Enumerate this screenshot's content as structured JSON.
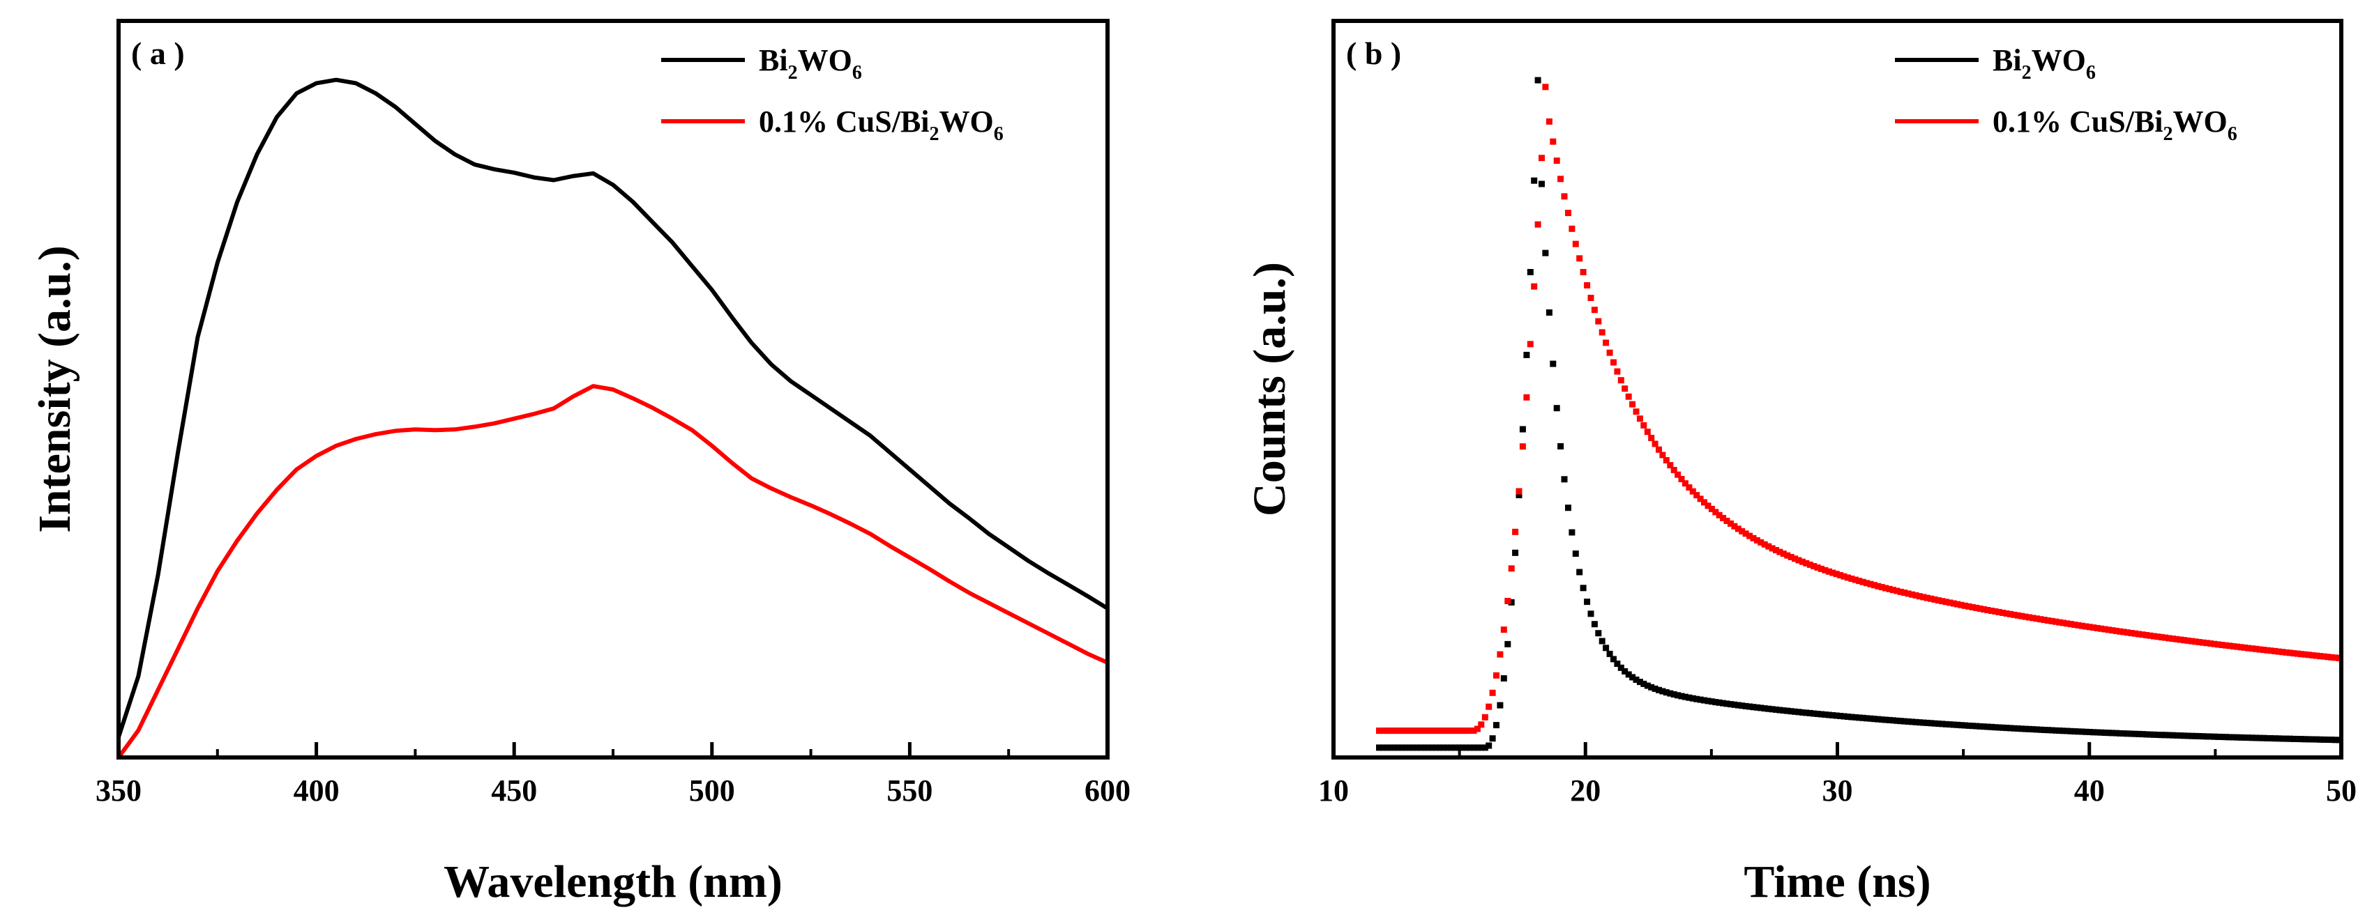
{
  "chart_data": [
    {
      "panel": "a",
      "panel_label": "( a )",
      "type": "line",
      "xlabel": "Wavelength (nm)",
      "ylabel": "Intensity (a.u.)",
      "xlim": [
        350,
        600
      ],
      "ylim": [
        0,
        1
      ],
      "x_ticks": [
        350,
        400,
        450,
        500,
        550,
        600
      ],
      "x_tick_labels": [
        "350",
        "400",
        "450",
        "500",
        "550",
        "600"
      ],
      "y_ticks": [],
      "legend_position": "top-right",
      "series": [
        {
          "name": "Bi2WO6",
          "label_parts": [
            [
              "Bi",
              ""
            ],
            [
              "2",
              "sub"
            ],
            [
              "WO",
              ""
            ],
            [
              "6",
              "sub"
            ]
          ],
          "color": "#000000",
          "x": [
            350,
            355,
            360,
            365,
            370,
            375,
            380,
            385,
            390,
            395,
            400,
            405,
            410,
            415,
            420,
            425,
            430,
            435,
            440,
            445,
            450,
            455,
            460,
            465,
            470,
            475,
            480,
            485,
            490,
            495,
            500,
            505,
            510,
            515,
            520,
            525,
            530,
            535,
            540,
            545,
            550,
            555,
            560,
            565,
            570,
            575,
            580,
            585,
            590,
            595,
            600
          ],
          "y": [
            0.03,
            0.12,
            0.27,
            0.45,
            0.62,
            0.73,
            0.82,
            0.89,
            0.945,
            0.98,
            0.995,
            1.0,
            0.995,
            0.98,
            0.96,
            0.935,
            0.91,
            0.89,
            0.875,
            0.868,
            0.863,
            0.856,
            0.852,
            0.858,
            0.862,
            0.845,
            0.82,
            0.79,
            0.76,
            0.725,
            0.69,
            0.65,
            0.612,
            0.58,
            0.555,
            0.535,
            0.515,
            0.495,
            0.475,
            0.45,
            0.425,
            0.4,
            0.375,
            0.353,
            0.33,
            0.31,
            0.29,
            0.272,
            0.255,
            0.238,
            0.22
          ]
        },
        {
          "name": "0.1% CuS/Bi2WO6",
          "label_parts": [
            [
              "0.1% CuS/Bi",
              ""
            ],
            [
              "2",
              "sub"
            ],
            [
              "WO",
              ""
            ],
            [
              "6",
              "sub"
            ]
          ],
          "color": "#ff0000",
          "x": [
            350,
            355,
            360,
            365,
            370,
            375,
            380,
            385,
            390,
            395,
            400,
            405,
            410,
            415,
            420,
            425,
            430,
            435,
            440,
            445,
            450,
            455,
            460,
            465,
            470,
            475,
            480,
            485,
            490,
            495,
            500,
            505,
            510,
            515,
            520,
            525,
            530,
            535,
            540,
            545,
            550,
            555,
            560,
            565,
            570,
            575,
            580,
            585,
            590,
            595,
            600
          ],
          "y": [
            0.0,
            0.04,
            0.1,
            0.16,
            0.22,
            0.275,
            0.32,
            0.36,
            0.395,
            0.425,
            0.445,
            0.46,
            0.47,
            0.477,
            0.482,
            0.484,
            0.483,
            0.484,
            0.488,
            0.493,
            0.5,
            0.507,
            0.515,
            0.533,
            0.548,
            0.543,
            0.53,
            0.516,
            0.5,
            0.483,
            0.46,
            0.435,
            0.412,
            0.397,
            0.384,
            0.372,
            0.359,
            0.345,
            0.33,
            0.312,
            0.295,
            0.278,
            0.26,
            0.243,
            0.228,
            0.213,
            0.198,
            0.183,
            0.168,
            0.153,
            0.14
          ]
        }
      ]
    },
    {
      "panel": "b",
      "panel_label": "( b )",
      "type": "scatter",
      "xlabel": "Time (ns)",
      "ylabel": "Counts (a.u.)",
      "xlim": [
        10,
        50
      ],
      "ylim": [
        0,
        1
      ],
      "x_ticks": [
        10,
        20,
        30,
        40,
        50
      ],
      "x_tick_labels": [
        "10",
        "20",
        "30",
        "40",
        "50"
      ],
      "y_ticks": [],
      "legend_position": "top-right",
      "sampling_ns": 0.15,
      "series": [
        {
          "name": "Bi2WO6",
          "label_parts": [
            [
              "Bi",
              ""
            ],
            [
              "2",
              "sub"
            ],
            [
              "WO",
              ""
            ],
            [
              "6",
              "sub"
            ]
          ],
          "color": "#000000",
          "peak_time_ns": 18.1,
          "peak_value": 1.0,
          "baseline": 0.015,
          "rise_start_ns": 16.0,
          "decay_fast_amp": 0.84,
          "decay_fast_tau_ns": 1.0,
          "decay_slow_amp": 0.11,
          "decay_slow_tau_ns": 14.0,
          "data_range_ns": [
            11.8,
            50
          ]
        },
        {
          "name": "0.1% CuS/Bi2WO6",
          "label_parts": [
            [
              "0.1% CuS/Bi",
              ""
            ],
            [
              "2",
              "sub"
            ],
            [
              "WO",
              ""
            ],
            [
              "6",
              "sub"
            ]
          ],
          "color": "#ff0000",
          "peak_time_ns": 18.4,
          "peak_value": 0.99,
          "baseline": 0.04,
          "rise_start_ns": 15.5,
          "decay_fast_amp": 0.6,
          "decay_fast_tau_ns": 3.0,
          "decay_slow_amp": 0.33,
          "decay_slow_tau_ns": 28.0,
          "data_range_ns": [
            11.8,
            50
          ]
        }
      ]
    }
  ]
}
